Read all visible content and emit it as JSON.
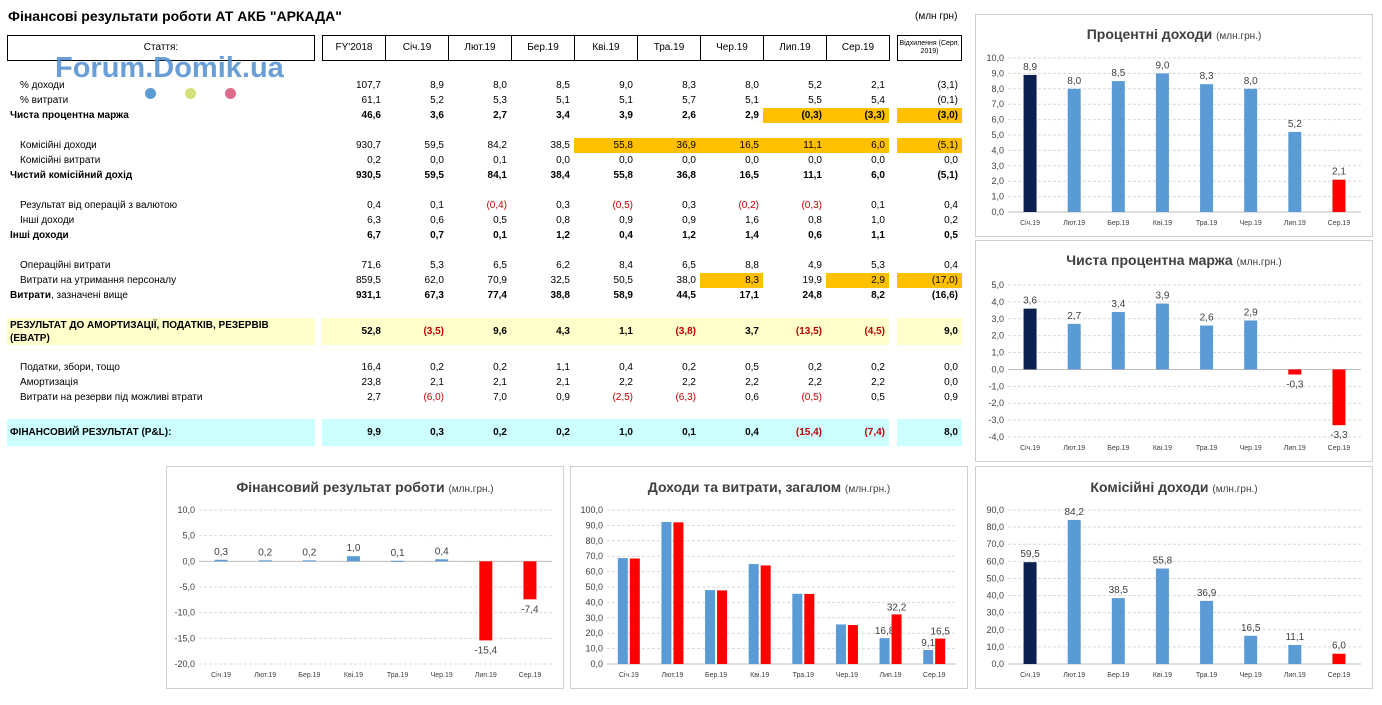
{
  "title": "Фінансові результати роботи АТ АКБ \"АРКАДА\"",
  "unit_note": "(млн грн)",
  "watermark": "Forum.Domik.ua",
  "watermark_dots": [
    "#5b9bd5",
    "#d4e07a",
    "#e06c8c"
  ],
  "colors": {
    "highlight": "#ffc000",
    "negative": "#c00000",
    "band_yellow": "#ffffcc",
    "band_cyan": "#ccffff"
  },
  "table": {
    "col_label": "Стаття:",
    "columns": [
      "FY'2018",
      "Січ.19",
      "Лют.19",
      "Бер.19",
      "Кві.19",
      "Тра.19",
      "Чер.19",
      "Лип.19",
      "Сер.19"
    ],
    "dev_header": "Відхилення (Серп. 2019)",
    "rows": [
      {
        "label": "% доходи",
        "indent": true,
        "bold": false,
        "values": [
          "107,7",
          "8,9",
          "8,0",
          "8,5",
          "9,0",
          "8,3",
          "8,0",
          "5,2",
          "2,1"
        ],
        "dev": "(3,1)"
      },
      {
        "label": "% витрати",
        "indent": true,
        "bold": false,
        "values": [
          "61,1",
          "5,2",
          "5,3",
          "5,1",
          "5,1",
          "5,7",
          "5,1",
          "5,5",
          "5,4"
        ],
        "dev": "(0,1)"
      },
      {
        "label": "Чиста процентна маржа",
        "indent": false,
        "bold": true,
        "values": [
          "46,6",
          "3,6",
          "2,7",
          "3,4",
          "3,9",
          "2,6",
          "2,9",
          "(0,3)",
          "(3,3)"
        ],
        "dev": "(3,0)",
        "hl": [
          7,
          8
        ],
        "hl_dev": true
      },
      {
        "label": "Комісійні доходи",
        "indent": true,
        "bold": false,
        "values": [
          "930,7",
          "59,5",
          "84,2",
          "38,5",
          "55,8",
          "36,9",
          "16,5",
          "11,1",
          "6,0"
        ],
        "dev": "(5,1)",
        "hl": [
          4,
          5,
          6,
          7,
          8
        ],
        "hl_dev": true
      },
      {
        "label": "Комісійні витрати",
        "indent": true,
        "bold": false,
        "values": [
          "0,2",
          "0,0",
          "0,1",
          "0,0",
          "0,0",
          "0,0",
          "0,0",
          "0,0",
          "0,0"
        ],
        "dev": "0,0"
      },
      {
        "label": "Чистий комісійний дохід",
        "indent": false,
        "bold": true,
        "values": [
          "930,5",
          "59,5",
          "84,1",
          "38,4",
          "55,8",
          "36,8",
          "16,5",
          "11,1",
          "6,0"
        ],
        "dev": "(5,1)"
      },
      {
        "label": "Результат від операцій з валютою",
        "indent": true,
        "bold": false,
        "values": [
          "0,4",
          "0,1",
          "(0,4)",
          "0,3",
          "(0,5)",
          "0,3",
          "(0,2)",
          "(0,3)",
          "0,1"
        ],
        "dev": "0,4",
        "neg": [
          2,
          4,
          6,
          7
        ]
      },
      {
        "label": "Інші доходи",
        "indent": true,
        "bold": false,
        "values": [
          "6,3",
          "0,6",
          "0,5",
          "0,8",
          "0,9",
          "0,9",
          "1,6",
          "0,8",
          "1,0"
        ],
        "dev": "0,2"
      },
      {
        "label": "Інші доходи",
        "indent": false,
        "bold": true,
        "values": [
          "6,7",
          "0,7",
          "0,1",
          "1,2",
          "0,4",
          "1,2",
          "1,4",
          "0,6",
          "1,1"
        ],
        "dev": "0,5"
      },
      {
        "label": "Операційні витрати",
        "indent": true,
        "bold": false,
        "values": [
          "71,6",
          "5,3",
          "6,5",
          "6,2",
          "8,4",
          "6,5",
          "8,8",
          "4,9",
          "5,3"
        ],
        "dev": "0,4"
      },
      {
        "label": "Витрати на утримання персоналу",
        "indent": true,
        "bold": false,
        "values": [
          "859,5",
          "62,0",
          "70,9",
          "32,5",
          "50,5",
          "38,0",
          "8,3",
          "19,9",
          "2,9"
        ],
        "dev": "(17,0)",
        "hl": [
          6,
          8
        ],
        "hl_dev": true
      },
      {
        "label": "Витрати, зазначені вище",
        "indent": false,
        "bold": true,
        "values": [
          "931,1",
          "67,3",
          "77,4",
          "38,8",
          "58,9",
          "44,5",
          "17,1",
          "24,8",
          "8,2"
        ],
        "dev": "(16,6)",
        "label_bold_part": "Витрати",
        "label_rest": ", зазначені вище"
      },
      {
        "label": "Податки, збори, тощо",
        "indent": true,
        "bold": false,
        "values": [
          "16,4",
          "0,2",
          "0,2",
          "1,1",
          "0,4",
          "0,2",
          "0,5",
          "0,2",
          "0,2"
        ],
        "dev": "0,0"
      },
      {
        "label": "Амортизація",
        "indent": true,
        "bold": false,
        "values": [
          "23,8",
          "2,1",
          "2,1",
          "2,1",
          "2,2",
          "2,2",
          "2,2",
          "2,2",
          "2,2"
        ],
        "dev": "0,0"
      },
      {
        "label": "Витрати на резерви під можливі втрати",
        "indent": true,
        "bold": false,
        "values": [
          "2,7",
          "(6,0)",
          "7,0",
          "0,9",
          "(2,5)",
          "(6,3)",
          "0,6",
          "(0,5)",
          "0,5"
        ],
        "dev": "0,9",
        "neg": [
          1,
          4,
          5,
          7
        ]
      }
    ],
    "ebatp": {
      "label": "РЕЗУЛЬТАТ ДО АМОРТИЗАЦІЇ, ПОДАТКІВ, РЕЗЕРВІВ (EBATP)",
      "values": [
        "52,8",
        "(3,5)",
        "9,6",
        "4,3",
        "1,1",
        "(3,8)",
        "3,7",
        "(13,5)",
        "(4,5)"
      ],
      "dev": "9,0",
      "neg": [
        1,
        5,
        7,
        8
      ]
    },
    "pnl": {
      "label": "ФІНАНСОВИЙ РЕЗУЛЬТАТ (P&L):",
      "values": [
        "9,9",
        "0,3",
        "0,2",
        "0,2",
        "1,0",
        "0,1",
        "0,4",
        "(15,4)",
        "(7,4)"
      ],
      "dev": "8,0",
      "neg": [
        7,
        8
      ]
    }
  },
  "chart_data": [
    {
      "type": "bar",
      "title": "Процентні доходи",
      "unit": "(млн.грн.)",
      "categories": [
        "Січ.19",
        "Лют.19",
        "Бер.19",
        "Кві.19",
        "Тра.19",
        "Чер.19",
        "Лип.19",
        "Сер.19"
      ],
      "values": [
        8.9,
        8.0,
        8.5,
        9.0,
        8.3,
        8.0,
        5.2,
        2.1
      ],
      "labels": [
        "8,9",
        "8,0",
        "8,5",
        "9,0",
        "8,3",
        "8,0",
        "5,2",
        "2,1"
      ],
      "ylim": [
        0,
        10
      ],
      "ystep": 1,
      "decimals": 1,
      "grid": true,
      "bar_colors": [
        "#0d1f4f",
        "#5b9bd5",
        "#5b9bd5",
        "#5b9bd5",
        "#5b9bd5",
        "#5b9bd5",
        "#5b9bd5",
        "#ff0000"
      ]
    },
    {
      "type": "bar",
      "title": "Чиста процентна маржа",
      "unit": "(млн.грн.)",
      "categories": [
        "Січ.19",
        "Лют.19",
        "Бер.19",
        "Кві.19",
        "Тра.19",
        "Чер.19",
        "Лип.19",
        "Сер.19"
      ],
      "values": [
        3.6,
        2.7,
        3.4,
        3.9,
        2.6,
        2.9,
        -0.3,
        -3.3
      ],
      "labels": [
        "3,6",
        "2,7",
        "3,4",
        "3,9",
        "2,6",
        "2,9",
        "-0,3",
        "-3,3"
      ],
      "ylim": [
        -4,
        5
      ],
      "ystep": 1,
      "decimals": 1,
      "grid": true,
      "bar_colors": [
        "#0d1f4f",
        "#5b9bd5",
        "#5b9bd5",
        "#5b9bd5",
        "#5b9bd5",
        "#5b9bd5",
        "#ff0000",
        "#ff0000"
      ]
    },
    {
      "type": "bar",
      "title": "Фінансовий результат роботи",
      "unit": "(млн.грн.)",
      "categories": [
        "Січ.19",
        "Лют.19",
        "Бер.19",
        "Кві.19",
        "Тра.19",
        "Чер.19",
        "Лип.19",
        "Сер.19"
      ],
      "values": [
        0.3,
        0.2,
        0.2,
        1.0,
        0.1,
        0.4,
        -15.4,
        -7.4
      ],
      "labels": [
        "0,3",
        "0,2",
        "0,2",
        "1,0",
        "0,1",
        "0,4",
        "-15,4",
        "-7,4"
      ],
      "ylim": [
        -20,
        10
      ],
      "ystep": 5,
      "decimals": 1,
      "grid": true,
      "bar_colors": [
        "#5b9bd5",
        "#5b9bd5",
        "#5b9bd5",
        "#5b9bd5",
        "#5b9bd5",
        "#5b9bd5",
        "#ff0000",
        "#ff0000"
      ]
    },
    {
      "type": "bar",
      "title": "Доходи та витрати, загалом",
      "unit": "(млн.грн.)",
      "categories": [
        "Січ.19",
        "Лют.19",
        "Бер.19",
        "Кві.19",
        "Тра.19",
        "Чер.19",
        "Лип.19",
        "Сер.19"
      ],
      "series": [
        {
          "values": [
            68.8,
            92.2,
            48.0,
            64.9,
            45.6,
            25.7,
            16.8,
            9.1
          ],
          "color": "#5b9bd5",
          "labels": [
            "",
            "",
            "",
            "",
            "",
            "",
            "16,8",
            "9,1"
          ]
        },
        {
          "values": [
            68.5,
            92.0,
            47.8,
            64.0,
            45.5,
            25.3,
            32.2,
            16.5
          ],
          "color": "#ff0000",
          "labels": [
            "",
            "",
            "",
            "",
            "",
            "",
            "32,2",
            "16,5"
          ]
        }
      ],
      "ylim": [
        0,
        100
      ],
      "ystep": 10,
      "decimals": 1,
      "grid": true
    },
    {
      "type": "bar",
      "title": "Комісійні доходи",
      "unit": "(млн.грн.)",
      "categories": [
        "Січ.19",
        "Лют.19",
        "Бер.19",
        "Кві.19",
        "Тра.19",
        "Чер.19",
        "Лип.19",
        "Сер.19"
      ],
      "values": [
        59.5,
        84.2,
        38.5,
        55.8,
        36.9,
        16.5,
        11.1,
        6.0
      ],
      "labels": [
        "59,5",
        "84,2",
        "38,5",
        "55,8",
        "36,9",
        "16,5",
        "11,1",
        "6,0"
      ],
      "ylim": [
        0,
        90
      ],
      "ystep": 10,
      "decimals": 1,
      "grid": true,
      "bar_colors": [
        "#0d1f4f",
        "#5b9bd5",
        "#5b9bd5",
        "#5b9bd5",
        "#5b9bd5",
        "#5b9bd5",
        "#5b9bd5",
        "#ff0000"
      ]
    }
  ]
}
